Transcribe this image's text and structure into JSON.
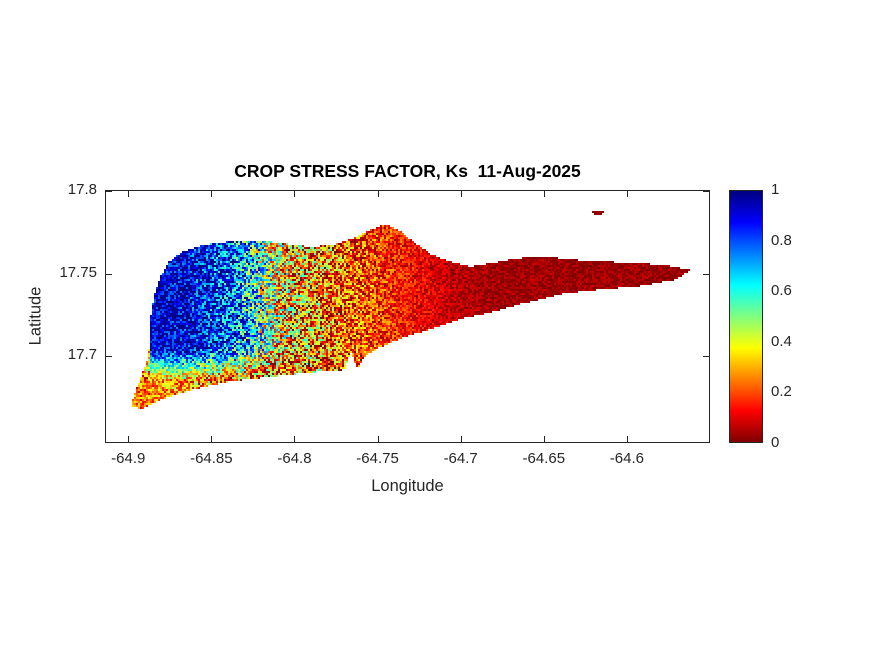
{
  "chart_data": {
    "type": "heatmap",
    "title": "CROP STRESS FACTOR, Ks  11-Aug-2025",
    "xlabel": "Longitude",
    "ylabel": "Latitude",
    "xlim": [
      -64.914,
      -64.55
    ],
    "ylim": [
      17.647,
      17.8
    ],
    "x_ticks": [
      -64.9,
      -64.85,
      -64.8,
      -64.75,
      -64.7,
      -64.65,
      -64.6
    ],
    "x_tick_labels": [
      "-64.9",
      "-64.85",
      "-64.8",
      "-64.75",
      "-64.7",
      "-64.65",
      "-64.6"
    ],
    "y_ticks": [
      17.8,
      17.75,
      17.7
    ],
    "y_tick_labels": [
      "17.8",
      "17.75",
      "17.7"
    ],
    "grid": false,
    "legend": "none",
    "colorbar": {
      "min": 0,
      "max": 1,
      "ticks": [
        0,
        0.2,
        0.4,
        0.6,
        0.8,
        1
      ],
      "tick_labels": [
        "0",
        "0.2",
        "0.4",
        "0.6",
        "0.8",
        "1"
      ],
      "colormap": "jet-reversed (1 = dark blue, 0 = dark red)",
      "stops": [
        {
          "color": "#000080",
          "pos": 0
        },
        {
          "color": "#0000ff",
          "pos": 12.5
        },
        {
          "color": "#00ffff",
          "pos": 37.5
        },
        {
          "color": "#80ff80",
          "pos": 50
        },
        {
          "color": "#ffff00",
          "pos": 62.5
        },
        {
          "color": "#ff0000",
          "pos": 87.5
        },
        {
          "color": "#800000",
          "pos": 100
        }
      ]
    },
    "field": {
      "description": "Ks raster over island: high (~0.9, blue) in northwest, speckled transition (~0.2-0.6) near lon -64.82 to -64.75, near zero (dark red) over eastern half; yellow/orange fringe along southwest coast; small dark-red islet off the northeast coast.",
      "island_outline": [
        [
          -64.899,
          17.669
        ],
        [
          -64.897,
          17.676
        ],
        [
          -64.893,
          17.686
        ],
        [
          -64.889,
          17.697
        ],
        [
          -64.887,
          17.71
        ],
        [
          -64.887,
          17.724
        ],
        [
          -64.885,
          17.736
        ],
        [
          -64.881,
          17.748
        ],
        [
          -64.876,
          17.757
        ],
        [
          -64.868,
          17.763
        ],
        [
          -64.856,
          17.767
        ],
        [
          -64.841,
          17.769
        ],
        [
          -64.824,
          17.77
        ],
        [
          -64.806,
          17.768
        ],
        [
          -64.791,
          17.766
        ],
        [
          -64.778,
          17.767
        ],
        [
          -64.765,
          17.771
        ],
        [
          -64.755,
          17.776
        ],
        [
          -64.745,
          17.78
        ],
        [
          -64.737,
          17.776
        ],
        [
          -64.727,
          17.768
        ],
        [
          -64.717,
          17.761
        ],
        [
          -64.706,
          17.757
        ],
        [
          -64.694,
          17.754
        ],
        [
          -64.681,
          17.756
        ],
        [
          -64.666,
          17.759
        ],
        [
          -64.649,
          17.76
        ],
        [
          -64.63,
          17.758
        ],
        [
          -64.612,
          17.757
        ],
        [
          -64.594,
          17.756
        ],
        [
          -64.578,
          17.755
        ],
        [
          -64.561,
          17.752
        ],
        [
          -64.57,
          17.746
        ],
        [
          -64.592,
          17.742
        ],
        [
          -64.616,
          17.74
        ],
        [
          -64.64,
          17.737
        ],
        [
          -64.664,
          17.731
        ],
        [
          -64.682,
          17.726
        ],
        [
          -64.7,
          17.722
        ],
        [
          -64.718,
          17.716
        ],
        [
          -64.736,
          17.71
        ],
        [
          -64.75,
          17.704
        ],
        [
          -64.758,
          17.699
        ],
        [
          -64.762,
          17.691
        ],
        [
          -64.766,
          17.702
        ],
        [
          -64.77,
          17.691
        ],
        [
          -64.784,
          17.69
        ],
        [
          -64.803,
          17.688
        ],
        [
          -64.821,
          17.686
        ],
        [
          -64.839,
          17.684
        ],
        [
          -64.857,
          17.68
        ],
        [
          -64.871,
          17.676
        ],
        [
          -64.883,
          17.672
        ],
        [
          -64.893,
          17.667
        ]
      ],
      "islet": {
        "center": [
          -64.617,
          17.787
        ],
        "rx": 0.0038,
        "ry": 0.0013,
        "ks": 0.02
      },
      "ks_vs_longitude": [
        [
          -64.92,
          0.93
        ],
        [
          -64.865,
          0.92
        ],
        [
          -64.84,
          0.8
        ],
        [
          -64.822,
          0.58
        ],
        [
          -64.808,
          0.34
        ],
        [
          -64.79,
          0.25
        ],
        [
          -64.76,
          0.2
        ],
        [
          -64.73,
          0.13
        ],
        [
          -64.705,
          0.06
        ],
        [
          -64.68,
          0.03
        ],
        [
          -64.54,
          0.02
        ]
      ],
      "noise": {
        "base": 0.05,
        "transition_amp": 0.3,
        "transition_center": -64.802,
        "transition_width": 0.055,
        "west_amp": 0.09,
        "west_center": -64.868,
        "west_width": 0.04
      },
      "south_fade": {
        "west_of": -64.8,
        "lat0": 17.684,
        "range": 0.02,
        "min_factor": 0.3
      },
      "west_tip": {
        "west_of": -64.888,
        "ks": 0.3
      }
    },
    "colors": {
      "axis_text": "#262626",
      "title_text": "#000000",
      "background": "#ffffff"
    }
  }
}
